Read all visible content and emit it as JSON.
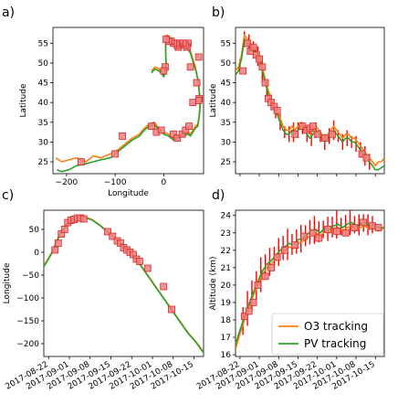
{
  "colors": {
    "o3": "#ff7f0e",
    "pv": "#2ca02c",
    "marker_fill": "#f08080",
    "marker_edge": "#d62728",
    "error": "#ff0000"
  },
  "legend": {
    "placement": "lower-right",
    "entries": [
      "O3 tracking",
      "PV tracking"
    ]
  },
  "chart_data": [
    {
      "panel": "a)",
      "type": "line",
      "xlabel": "Longitude",
      "ylabel": "Latitude",
      "xlim": [
        -228,
        82
      ],
      "ylim": [
        22,
        59
      ],
      "xticks": [
        -200,
        -100,
        0
      ],
      "yticks": [
        25,
        30,
        35,
        40,
        45,
        50,
        55
      ],
      "series": [
        {
          "name": "O3 tracking",
          "x": [
            -222,
            -210,
            -195,
            -180,
            -160,
            -145,
            -130,
            -110,
            -95,
            -80,
            -65,
            -50,
            -40,
            -30,
            -20,
            -10,
            0,
            10,
            20,
            30,
            40,
            50,
            55,
            60,
            65,
            70,
            72,
            74,
            75,
            73,
            70,
            65,
            60,
            55,
            50,
            45,
            40,
            33,
            27,
            20,
            12,
            8,
            5,
            4,
            4,
            5,
            3,
            0,
            -5,
            -10,
            -18,
            -25
          ],
          "y": [
            26,
            25,
            25.5,
            26,
            25,
            26.5,
            26,
            27,
            28,
            29.5,
            31,
            32,
            33.5,
            34.5,
            35,
            33.5,
            32.5,
            32,
            31,
            31.5,
            32,
            32.5,
            32,
            33,
            34,
            34.5,
            36,
            38,
            40,
            43,
            46,
            49,
            51,
            53,
            54,
            54.5,
            55,
            55,
            55.5,
            56,
            56.5,
            57,
            57,
            56,
            53,
            50,
            48,
            47,
            48,
            48.5,
            49,
            48
          ]
        },
        {
          "name": "PV tracking",
          "x": [
            -220,
            -210,
            -195,
            -180,
            -160,
            -145,
            -130,
            -110,
            -95,
            -80,
            -65,
            -50,
            -40,
            -30,
            -20,
            -10,
            0,
            10,
            20,
            30,
            40,
            50,
            55,
            60,
            65,
            70,
            72,
            74,
            75,
            73,
            70,
            65,
            60,
            55,
            50,
            45,
            40,
            33,
            27,
            20,
            12,
            8,
            5,
            4,
            4,
            5,
            3,
            0,
            -5,
            -10,
            -18,
            -25
          ],
          "y": [
            23,
            22.5,
            23,
            24,
            24.5,
            25,
            25.5,
            26,
            27.5,
            29,
            30.5,
            31.5,
            33,
            34,
            34.5,
            33,
            32,
            31.5,
            30.5,
            31,
            31.5,
            32,
            31.5,
            32.5,
            33.5,
            34,
            35.5,
            37.5,
            40,
            43,
            46,
            48.5,
            50.5,
            52.5,
            53.5,
            54,
            54.5,
            55,
            55,
            55.5,
            56,
            56.5,
            56.5,
            55.5,
            52.5,
            49.5,
            47.5,
            46.5,
            47.5,
            48,
            48.5,
            47.5
          ]
        }
      ],
      "markers": {
        "x": [
          -170,
          -100,
          -85,
          -25,
          -15,
          -5,
          20,
          28,
          38,
          45,
          52,
          60,
          68,
          72,
          73,
          72,
          55,
          50,
          48,
          45,
          40,
          33,
          30,
          28,
          25,
          20,
          15,
          10,
          5,
          3,
          0
        ],
        "y": [
          25,
          27,
          31.5,
          34,
          32.5,
          33,
          32,
          31,
          32,
          33,
          34,
          40,
          45,
          51.5,
          41,
          40.5,
          49,
          55,
          54,
          54.5,
          55,
          55,
          54,
          54.5,
          55,
          55,
          55.5,
          55.5,
          56,
          49,
          48
        ]
      }
    },
    {
      "panel": "b)",
      "type": "line",
      "ylabel": "Latitude",
      "xlim": [
        0,
        100
      ],
      "ylim": [
        22,
        59
      ],
      "yticks": [
        25,
        30,
        35,
        40,
        45,
        50,
        55
      ],
      "series": [
        {
          "name": "O3 tracking",
          "x": [
            0,
            2,
            4,
            6,
            8,
            10,
            12,
            14,
            16,
            18,
            20,
            22,
            24,
            26,
            28,
            30,
            32,
            34,
            36,
            38,
            40,
            42,
            44,
            46,
            48,
            50,
            52,
            54,
            56,
            58,
            60,
            62,
            64,
            66,
            68,
            70,
            72,
            74,
            76,
            78,
            80,
            82,
            84,
            86,
            88,
            90,
            92,
            94,
            96,
            98,
            100
          ],
          "y": [
            48,
            49,
            52,
            57,
            56,
            55,
            54,
            53,
            52,
            49,
            46,
            43,
            41,
            39,
            38,
            36,
            34,
            33,
            33,
            34,
            33,
            34,
            35,
            34,
            33,
            32,
            33,
            34,
            33,
            32,
            31,
            32,
            33,
            34,
            33,
            32,
            31,
            32,
            32,
            31,
            31,
            30,
            29,
            28,
            27,
            26,
            25,
            24,
            25,
            25,
            26
          ]
        },
        {
          "name": "PV tracking",
          "x": [
            0,
            2,
            4,
            6,
            8,
            10,
            12,
            14,
            16,
            18,
            20,
            22,
            24,
            26,
            28,
            30,
            32,
            34,
            36,
            38,
            40,
            42,
            44,
            46,
            48,
            50,
            52,
            54,
            56,
            58,
            60,
            62,
            64,
            66,
            68,
            70,
            72,
            74,
            76,
            78,
            80,
            82,
            84,
            86,
            88,
            90,
            92,
            94,
            96,
            98,
            100
          ],
          "y": [
            47,
            48,
            51,
            56,
            55,
            54.5,
            53.5,
            52.5,
            51,
            48,
            45,
            42,
            40,
            38,
            37,
            35,
            33,
            32,
            32,
            33,
            32,
            33,
            34,
            33,
            32,
            31,
            32,
            33,
            32,
            31,
            30,
            31,
            32,
            33,
            32,
            31,
            30,
            31,
            31,
            30,
            30,
            29,
            28,
            27,
            26,
            25,
            24,
            23,
            23,
            23.5,
            24
          ]
        }
      ],
      "markers": {
        "x": [
          5,
          8,
          10,
          12,
          14,
          16,
          18,
          20,
          22,
          24,
          26,
          28,
          40,
          45,
          48,
          50,
          52,
          55,
          60,
          65,
          85,
          88
        ],
        "y": [
          48,
          55,
          53,
          54,
          52,
          51,
          49,
          45,
          41,
          40,
          39,
          38,
          32,
          34,
          33,
          33.5,
          34,
          32,
          31,
          32,
          27,
          26
        ]
      },
      "errors": {
        "x": [
          3,
          6,
          9,
          12,
          15,
          18,
          21,
          24,
          27,
          30,
          33,
          36,
          39,
          42,
          45,
          48,
          51,
          54,
          57,
          60,
          63,
          66,
          69,
          72,
          75,
          78,
          81,
          84,
          87,
          90
        ],
        "half": [
          1.5,
          2,
          2.5,
          2,
          2.5,
          3,
          2,
          2,
          1.5,
          2,
          1.5,
          2,
          2.5,
          2,
          1.5,
          2,
          2.5,
          2,
          1.5,
          2,
          2,
          2.5,
          1.5,
          2,
          2,
          1.5,
          2,
          2,
          2.5,
          2
        ]
      }
    },
    {
      "panel": "c)",
      "type": "line",
      "ylabel": "Longitude",
      "xlim": [
        0,
        100
      ],
      "ylim": [
        -228,
        92
      ],
      "yticks": [
        -200,
        -150,
        -100,
        -50,
        0,
        50
      ],
      "xtick_pos": [
        3,
        16,
        29,
        42,
        55,
        68,
        81,
        94
      ],
      "xticks": [
        "2017-08-22",
        "2017-09-01",
        "2017-09-08",
        "2017-09-15",
        "2017-09-22",
        "2017-10-01",
        "2017-10-08",
        "2017-10-15"
      ],
      "series": [
        {
          "name": "O3 tracking",
          "x": [
            0,
            5,
            10,
            15,
            20,
            25,
            30,
            35,
            40,
            45,
            50,
            55,
            60,
            65,
            70,
            75,
            80,
            85,
            90,
            95,
            100
          ],
          "y": [
            -30,
            0,
            40,
            65,
            75,
            78,
            72,
            60,
            45,
            30,
            15,
            -5,
            -25,
            -50,
            -75,
            -100,
            -125,
            -150,
            -175,
            -195,
            -218
          ]
        },
        {
          "name": "PV tracking",
          "x": [
            0,
            5,
            10,
            15,
            20,
            25,
            30,
            35,
            40,
            45,
            50,
            55,
            60,
            65,
            70,
            75,
            80,
            85,
            90,
            95,
            100
          ],
          "y": [
            -32,
            -2,
            38,
            63,
            73,
            77,
            71,
            59,
            44,
            29,
            14,
            -6,
            -26,
            -51,
            -76,
            -101,
            -126,
            -151,
            -176,
            -196,
            -220
          ]
        }
      ],
      "markers": {
        "x": [
          7,
          9,
          11,
          13,
          15,
          17,
          19,
          21,
          23,
          25,
          40,
          43,
          46,
          48,
          50,
          52,
          54,
          56,
          58,
          60,
          65,
          75,
          80
        ],
        "y": [
          5,
          20,
          40,
          50,
          65,
          70,
          72,
          75,
          75,
          73,
          45,
          35,
          25,
          20,
          10,
          5,
          0,
          -5,
          -15,
          -20,
          -35,
          -75,
          -125
        ]
      }
    },
    {
      "panel": "d)",
      "type": "line",
      "ylabel": "Altitude (km)",
      "xlim": [
        0,
        100
      ],
      "ylim": [
        15.9,
        24.3
      ],
      "yticks": [
        16,
        17,
        18,
        19,
        20,
        21,
        22,
        23,
        24
      ],
      "xtick_pos": [
        3,
        16,
        29,
        42,
        55,
        68,
        81,
        94
      ],
      "xticks": [
        "2017-08-22",
        "2017-09-01",
        "2017-09-08",
        "2017-09-15",
        "2017-09-22",
        "2017-10-01",
        "2017-10-08",
        "2017-10-15"
      ],
      "series": [
        {
          "name": "O3 tracking",
          "x": [
            0,
            3,
            6,
            9,
            12,
            15,
            18,
            21,
            24,
            27,
            30,
            33,
            36,
            39,
            42,
            45,
            48,
            51,
            54,
            57,
            60,
            63,
            66,
            69,
            72,
            75,
            78,
            81,
            84,
            87,
            90,
            93,
            96,
            100
          ],
          "y": [
            16.3,
            17.2,
            18,
            18.6,
            19.4,
            20,
            20.6,
            21,
            21.2,
            21.5,
            21.8,
            22,
            22.2,
            22.1,
            22.4,
            22.5,
            22.7,
            22.9,
            23,
            22.8,
            23.1,
            23,
            23.2,
            23.3,
            23.1,
            23.3,
            23.4,
            23.2,
            23.3,
            23.4,
            23.2,
            23.3,
            23.1,
            23.3
          ]
        },
        {
          "name": "PV tracking",
          "x": [
            0,
            3,
            6,
            9,
            12,
            15,
            18,
            21,
            24,
            27,
            30,
            33,
            36,
            39,
            42,
            45,
            48,
            51,
            54,
            57,
            60,
            63,
            66,
            69,
            72,
            75,
            78,
            81,
            84,
            87,
            90,
            93,
            96,
            100
          ],
          "y": [
            16.6,
            17.4,
            18.2,
            18.9,
            19.6,
            20.2,
            20.8,
            21.2,
            21.4,
            21.7,
            22,
            22.2,
            22.4,
            22.3,
            22.6,
            22.7,
            22.9,
            23.1,
            23.2,
            23,
            23.3,
            23.2,
            23.4,
            23.5,
            23.3,
            23.5,
            23.6,
            23.4,
            23.5,
            23.6,
            23.4,
            23.5,
            23.3,
            23.3
          ]
        }
      ],
      "markers": {
        "x": [
          6,
          9,
          12,
          15,
          20,
          24,
          28,
          33,
          40,
          46,
          52,
          56,
          62,
          68,
          74,
          80,
          86,
          92,
          96
        ],
        "y": [
          18.2,
          18.5,
          19,
          20,
          20.5,
          21,
          21.6,
          22,
          22.3,
          22.8,
          23,
          22.7,
          23.2,
          23.1,
          23,
          23.3,
          23.6,
          23.4,
          23.3
        ]
      },
      "errors": {
        "x": [
          5,
          8,
          11,
          14,
          17,
          20,
          23,
          26,
          29,
          32,
          35,
          38,
          41,
          44,
          47,
          50,
          53,
          56,
          59,
          62,
          65,
          68,
          71,
          74,
          77,
          80,
          83,
          86,
          89,
          92
        ],
        "half": [
          0.8,
          1,
          0.9,
          0.8,
          1,
          0.7,
          0.8,
          0.6,
          0.8,
          0.7,
          0.9,
          0.6,
          0.7,
          0.8,
          0.6,
          0.7,
          0.8,
          0.6,
          0.5,
          0.7,
          0.6,
          0.8,
          0.5,
          0.6,
          0.7,
          0.5,
          0.6,
          0.5,
          0.6,
          0.5
        ]
      }
    }
  ]
}
